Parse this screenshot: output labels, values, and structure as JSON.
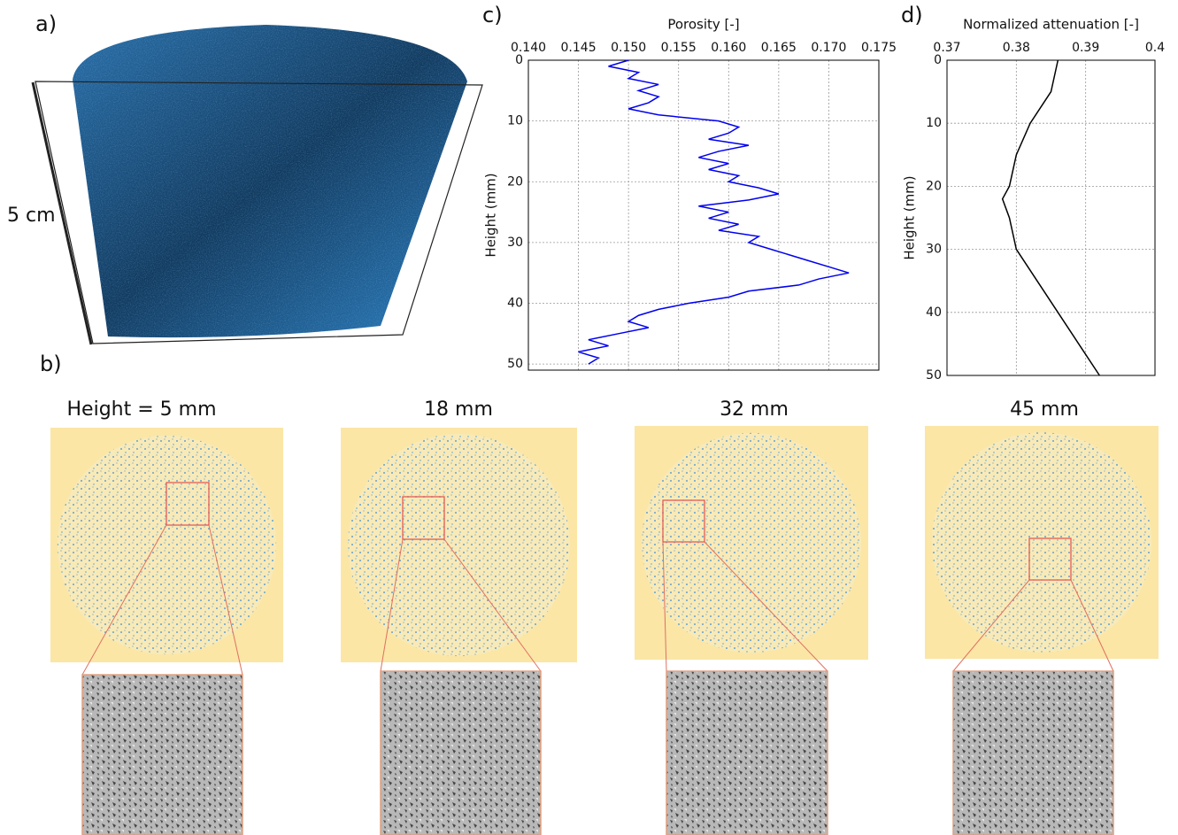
{
  "panel_labels": [
    "a)",
    "b)"
  ],
  "scale_label": "5 cm",
  "slices": [
    "Height = 5 mm",
    "18 mm",
    "32 mm",
    "45 mm"
  ],
  "chart_data": [
    {
      "type": "line",
      "panel_label": "c)",
      "xlabel": "Porosity [-]",
      "ylabel": "Height (mm)",
      "color": "#0000ee",
      "y": [
        0,
        1,
        2,
        3,
        4,
        5,
        6,
        7,
        8,
        9,
        10,
        11,
        12,
        13,
        14,
        15,
        16,
        17,
        18,
        19,
        20,
        21,
        22,
        23,
        24,
        25,
        26,
        27,
        28,
        29,
        30,
        31,
        32,
        33,
        34,
        35,
        36,
        37,
        38,
        39,
        40,
        41,
        42,
        43,
        44,
        45,
        46,
        47,
        48,
        49,
        50
      ],
      "values": [
        0.15,
        0.148,
        0.151,
        0.15,
        0.153,
        0.151,
        0.153,
        0.152,
        0.15,
        0.153,
        0.159,
        0.161,
        0.16,
        0.158,
        0.162,
        0.159,
        0.157,
        0.16,
        0.158,
        0.161,
        0.16,
        0.163,
        0.165,
        0.162,
        0.157,
        0.16,
        0.158,
        0.161,
        0.159,
        0.163,
        0.162,
        0.164,
        0.166,
        0.168,
        0.17,
        0.172,
        0.169,
        0.167,
        0.162,
        0.16,
        0.156,
        0.153,
        0.151,
        0.15,
        0.152,
        0.149,
        0.146,
        0.148,
        0.145,
        0.147,
        0.146
      ],
      "xlim": [
        0.14,
        0.175
      ],
      "xticks": [
        {
          "value": 0.14,
          "label": "0.140"
        },
        0.145,
        {
          "value": 0.15,
          "label": "0.150"
        },
        0.155,
        {
          "value": 0.16,
          "label": "0.160"
        },
        0.165,
        {
          "value": 0.17,
          "label": "0.170"
        },
        {
          "value": 0.175,
          "label": "0.175"
        }
      ],
      "ylim": [
        0,
        51
      ],
      "yticks": [
        0,
        10,
        20,
        30,
        40,
        50
      ],
      "grid": true
    },
    {
      "type": "line",
      "panel_label": "d)",
      "xlabel": "Normalized attenuation [-]",
      "ylabel": "Height (mm)",
      "color": "#000000",
      "y": [
        0,
        5,
        10,
        15,
        20,
        22,
        25,
        30,
        35,
        40,
        45,
        50
      ],
      "values": [
        0.386,
        0.385,
        0.382,
        0.38,
        0.379,
        0.378,
        0.379,
        0.38,
        0.383,
        0.386,
        0.389,
        0.392
      ],
      "xlim": [
        0.37,
        0.4
      ],
      "xticks": [
        0.37,
        0.38,
        0.39,
        0.4
      ],
      "ylim": [
        0,
        50
      ],
      "yticks": [
        0,
        10,
        20,
        30,
        40,
        50
      ],
      "grid": true
    }
  ]
}
